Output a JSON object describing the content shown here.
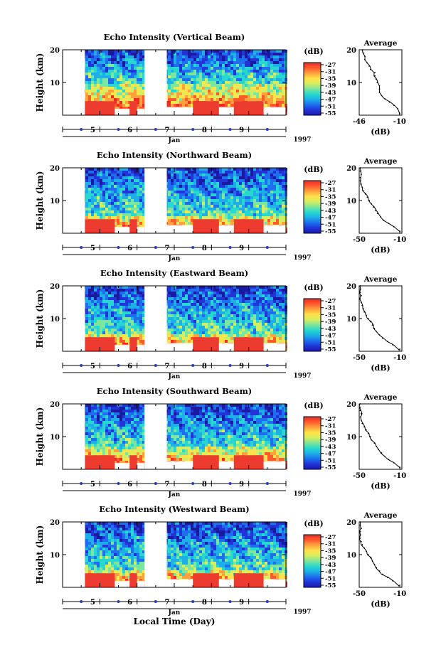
{
  "figure": {
    "xlabel": "Local Time (Day)"
  },
  "colors": {
    "colormap": [
      "#1a1aa0",
      "#2233d8",
      "#1f6ef0",
      "#1eaee8",
      "#26d8d0",
      "#7be6a0",
      "#d2ee62",
      "#ffe34a",
      "#ffa23c",
      "#ff5a2c",
      "#ee2a22"
    ],
    "gap": "#ffffff",
    "ground_clutter": "#ee3b30",
    "tick_marker": "#2b3fb8"
  },
  "chart_data": [
    {
      "type": "heatmap",
      "title": "Echo Intensity (Vertical Beam)",
      "ylabel": "Height (km)",
      "ylim": [
        0,
        20
      ],
      "yticks": [
        10,
        20
      ],
      "xlim": [
        4.0,
        10.0
      ],
      "xticks": [
        "5",
        "6",
        "7",
        "8",
        "9"
      ],
      "month_label": "Jan",
      "year_label": "1997",
      "colorbar": {
        "unit": "(dB)",
        "ticks": [
          "-27",
          "-31",
          "-35",
          "-39",
          "-43",
          "-47",
          "-51",
          "-55"
        ],
        "range": [
          -55,
          -27
        ]
      },
      "data_gaps_days": [
        [
          4.0,
          4.6
        ],
        [
          6.2,
          6.8
        ]
      ],
      "ground_clutter": {
        "blocks": [
          [
            4.6,
            5.4,
            4.3
          ],
          [
            5.4,
            5.8,
            2.0
          ],
          [
            5.8,
            6.0,
            4.3
          ],
          [
            6.0,
            6.2,
            2.0
          ],
          [
            6.8,
            7.5,
            2.5
          ],
          [
            7.5,
            8.2,
            4.3
          ],
          [
            8.2,
            8.6,
            2.5
          ],
          [
            8.6,
            9.4,
            4.3
          ],
          [
            9.4,
            10.0,
            2.5
          ]
        ]
      },
      "echo_boundary_km": 10,
      "average_profile": {
        "title": "Average",
        "xlabel": "(dB)",
        "xlim": [
          -46,
          -8
        ],
        "xticks": [
          -46,
          -10
        ],
        "ylim": [
          0,
          20
        ],
        "yticks": [
          10,
          20
        ],
        "height_km": [
          0.5,
          2,
          3,
          4,
          5,
          6,
          7,
          8,
          9,
          10,
          11,
          12,
          13,
          14,
          15,
          16,
          17,
          18,
          19,
          20
        ],
        "intensity_db": [
          -10,
          -12,
          -15,
          -19,
          -23,
          -26,
          -28,
          -28,
          -28,
          -30,
          -31,
          -32,
          -32,
          -36,
          -37,
          -39,
          -41,
          -41,
          -42,
          -43
        ]
      }
    },
    {
      "type": "heatmap",
      "title": "Echo Intensity (Northward Beam)",
      "ylabel": "Height (km)",
      "ylim": [
        0,
        20
      ],
      "yticks": [
        10,
        20
      ],
      "xlim": [
        4.0,
        10.0
      ],
      "xticks": [
        "5",
        "6",
        "7",
        "8",
        "9"
      ],
      "month_label": "Jan",
      "year_label": "1997",
      "colorbar": {
        "unit": "(dB)",
        "ticks": [
          "-27",
          "-31",
          "-35",
          "-39",
          "-43",
          "-47",
          "-51",
          "-55"
        ],
        "range": [
          -55,
          -27
        ]
      },
      "data_gaps_days": [
        [
          4.0,
          4.6
        ],
        [
          6.2,
          6.8
        ]
      ],
      "ground_clutter": {
        "blocks": [
          [
            4.6,
            5.4,
            4.3
          ],
          [
            5.4,
            5.8,
            2.0
          ],
          [
            5.8,
            6.0,
            4.3
          ],
          [
            6.0,
            6.2,
            2.0
          ],
          [
            6.8,
            7.5,
            2.5
          ],
          [
            7.5,
            8.2,
            4.3
          ],
          [
            8.2,
            8.6,
            2.5
          ],
          [
            8.6,
            9.4,
            4.3
          ],
          [
            9.4,
            10.0,
            2.5
          ]
        ]
      },
      "echo_boundary_km": 6,
      "average_profile": {
        "title": "Average",
        "xlabel": "(dB)",
        "xlim": [
          -50,
          -8
        ],
        "xticks": [
          -50,
          -10
        ],
        "ylim": [
          0,
          20
        ],
        "yticks": [
          10,
          20
        ],
        "height_km": [
          0.5,
          2,
          3,
          4,
          5,
          6,
          7,
          8,
          9,
          10,
          11,
          12,
          13,
          14,
          15,
          16,
          17,
          18,
          19,
          20
        ],
        "intensity_db": [
          -10,
          -16,
          -21,
          -26,
          -29,
          -32,
          -34,
          -36,
          -38,
          -40,
          -42,
          -44,
          -46,
          -47,
          -48,
          -49,
          -49,
          -48,
          -49,
          -49
        ]
      }
    },
    {
      "type": "heatmap",
      "title": "Echo Intensity (Eastward Beam)",
      "ylabel": "Height (km)",
      "ylim": [
        0,
        20
      ],
      "yticks": [
        10,
        20
      ],
      "xlim": [
        4.0,
        10.0
      ],
      "xticks": [
        "5",
        "6",
        "7",
        "8",
        "9"
      ],
      "month_label": "Jan",
      "year_label": "1997",
      "colorbar": {
        "unit": "(dB)",
        "ticks": [
          "-27",
          "-31",
          "-35",
          "-39",
          "-43",
          "-47",
          "-51",
          "-55"
        ],
        "range": [
          -55,
          -27
        ]
      },
      "data_gaps_days": [
        [
          4.0,
          4.6
        ],
        [
          6.2,
          6.8
        ]
      ],
      "ground_clutter": {
        "blocks": [
          [
            4.6,
            5.4,
            4.3
          ],
          [
            5.4,
            5.8,
            2.0
          ],
          [
            5.8,
            6.0,
            4.3
          ],
          [
            6.0,
            6.2,
            2.0
          ],
          [
            6.8,
            7.5,
            2.5
          ],
          [
            7.5,
            8.2,
            4.3
          ],
          [
            8.2,
            8.6,
            2.5
          ],
          [
            8.6,
            9.4,
            4.3
          ],
          [
            9.4,
            10.0,
            2.5
          ]
        ]
      },
      "echo_boundary_km": 6,
      "average_profile": {
        "title": "Average",
        "xlabel": "(dB)",
        "xlim": [
          -50,
          -8
        ],
        "xticks": [
          -50,
          -10
        ],
        "ylim": [
          0,
          20
        ],
        "yticks": [
          10,
          20
        ],
        "height_km": [
          0.5,
          2,
          3,
          4,
          5,
          6,
          7,
          8,
          9,
          10,
          11,
          12,
          13,
          14,
          15,
          16,
          17,
          18,
          19,
          20
        ],
        "intensity_db": [
          -11,
          -17,
          -22,
          -27,
          -30,
          -33,
          -35,
          -37,
          -39,
          -41,
          -43,
          -45,
          -46,
          -47,
          -48,
          -49,
          -48,
          -49,
          -49,
          -49
        ]
      }
    },
    {
      "type": "heatmap",
      "title": "Echo Intensity (Southward Beam)",
      "ylabel": "Height (km)",
      "ylim": [
        0,
        20
      ],
      "yticks": [
        10,
        20
      ],
      "xlim": [
        4.0,
        10.0
      ],
      "xticks": [
        "5",
        "6",
        "7",
        "8",
        "9"
      ],
      "month_label": "Jan",
      "year_label": "1997",
      "colorbar": {
        "unit": "(dB)",
        "ticks": [
          "-27",
          "-31",
          "-35",
          "-39",
          "-43",
          "-47",
          "-51",
          "-55"
        ],
        "range": [
          -55,
          -27
        ]
      },
      "data_gaps_days": [
        [
          4.0,
          4.6
        ],
        [
          6.2,
          6.8
        ]
      ],
      "ground_clutter": {
        "blocks": [
          [
            4.6,
            5.4,
            4.3
          ],
          [
            5.4,
            5.8,
            2.0
          ],
          [
            5.8,
            6.0,
            4.3
          ],
          [
            6.0,
            6.2,
            2.0
          ],
          [
            6.8,
            7.5,
            2.5
          ],
          [
            7.5,
            8.2,
            4.3
          ],
          [
            8.2,
            8.6,
            2.5
          ],
          [
            8.6,
            9.4,
            4.3
          ],
          [
            9.4,
            10.0,
            2.5
          ]
        ]
      },
      "echo_boundary_km": 7,
      "average_profile": {
        "title": "Average",
        "xlabel": "(dB)",
        "xlim": [
          -50,
          -8
        ],
        "xticks": [
          -50,
          -10
        ],
        "ylim": [
          0,
          20
        ],
        "yticks": [
          10,
          20
        ],
        "height_km": [
          0.5,
          2,
          3,
          4,
          5,
          6,
          7,
          8,
          9,
          10,
          11,
          12,
          13,
          14,
          15,
          16,
          17,
          18,
          19,
          20
        ],
        "intensity_db": [
          -10,
          -16,
          -21,
          -25,
          -28,
          -31,
          -33,
          -35,
          -38,
          -39,
          -41,
          -43,
          -45,
          -47,
          -48,
          -49,
          -48,
          -49,
          -49,
          -49
        ]
      }
    },
    {
      "type": "heatmap",
      "title": "Echo Intensity (Westward Beam)",
      "ylabel": "Height (km)",
      "ylim": [
        0,
        20
      ],
      "yticks": [
        10,
        20
      ],
      "xlim": [
        4.0,
        10.0
      ],
      "xticks": [
        "5",
        "6",
        "7",
        "8",
        "9"
      ],
      "month_label": "Jan",
      "year_label": "1997",
      "colorbar": {
        "unit": "(dB)",
        "ticks": [
          "-27",
          "-31",
          "-35",
          "-39",
          "-43",
          "-47",
          "-51",
          "-55"
        ],
        "range": [
          -55,
          -27
        ]
      },
      "data_gaps_days": [
        [
          4.0,
          4.6
        ],
        [
          6.2,
          6.8
        ]
      ],
      "ground_clutter": {
        "blocks": [
          [
            4.6,
            5.4,
            4.3
          ],
          [
            5.4,
            5.8,
            2.0
          ],
          [
            5.8,
            6.0,
            4.3
          ],
          [
            6.0,
            6.2,
            2.0
          ],
          [
            6.8,
            7.5,
            2.5
          ],
          [
            7.5,
            8.2,
            4.3
          ],
          [
            8.2,
            8.6,
            2.5
          ],
          [
            8.6,
            9.4,
            4.3
          ],
          [
            9.4,
            10.0,
            2.5
          ]
        ]
      },
      "echo_boundary_km": 6,
      "average_profile": {
        "title": "Average",
        "xlabel": "(dB)",
        "xlim": [
          -50,
          -8
        ],
        "xticks": [
          -50,
          -10
        ],
        "ylim": [
          0,
          20
        ],
        "yticks": [
          10,
          20
        ],
        "height_km": [
          0.5,
          2,
          3,
          4,
          5,
          6,
          7,
          8,
          9,
          10,
          11,
          12,
          13,
          14,
          15,
          16,
          17,
          18,
          19,
          20
        ],
        "intensity_db": [
          -11,
          -17,
          -22,
          -27,
          -30,
          -33,
          -35,
          -37,
          -39,
          -41,
          -43,
          -45,
          -47,
          -48,
          -49,
          -49,
          -49,
          -48,
          -49,
          -49
        ]
      }
    }
  ]
}
